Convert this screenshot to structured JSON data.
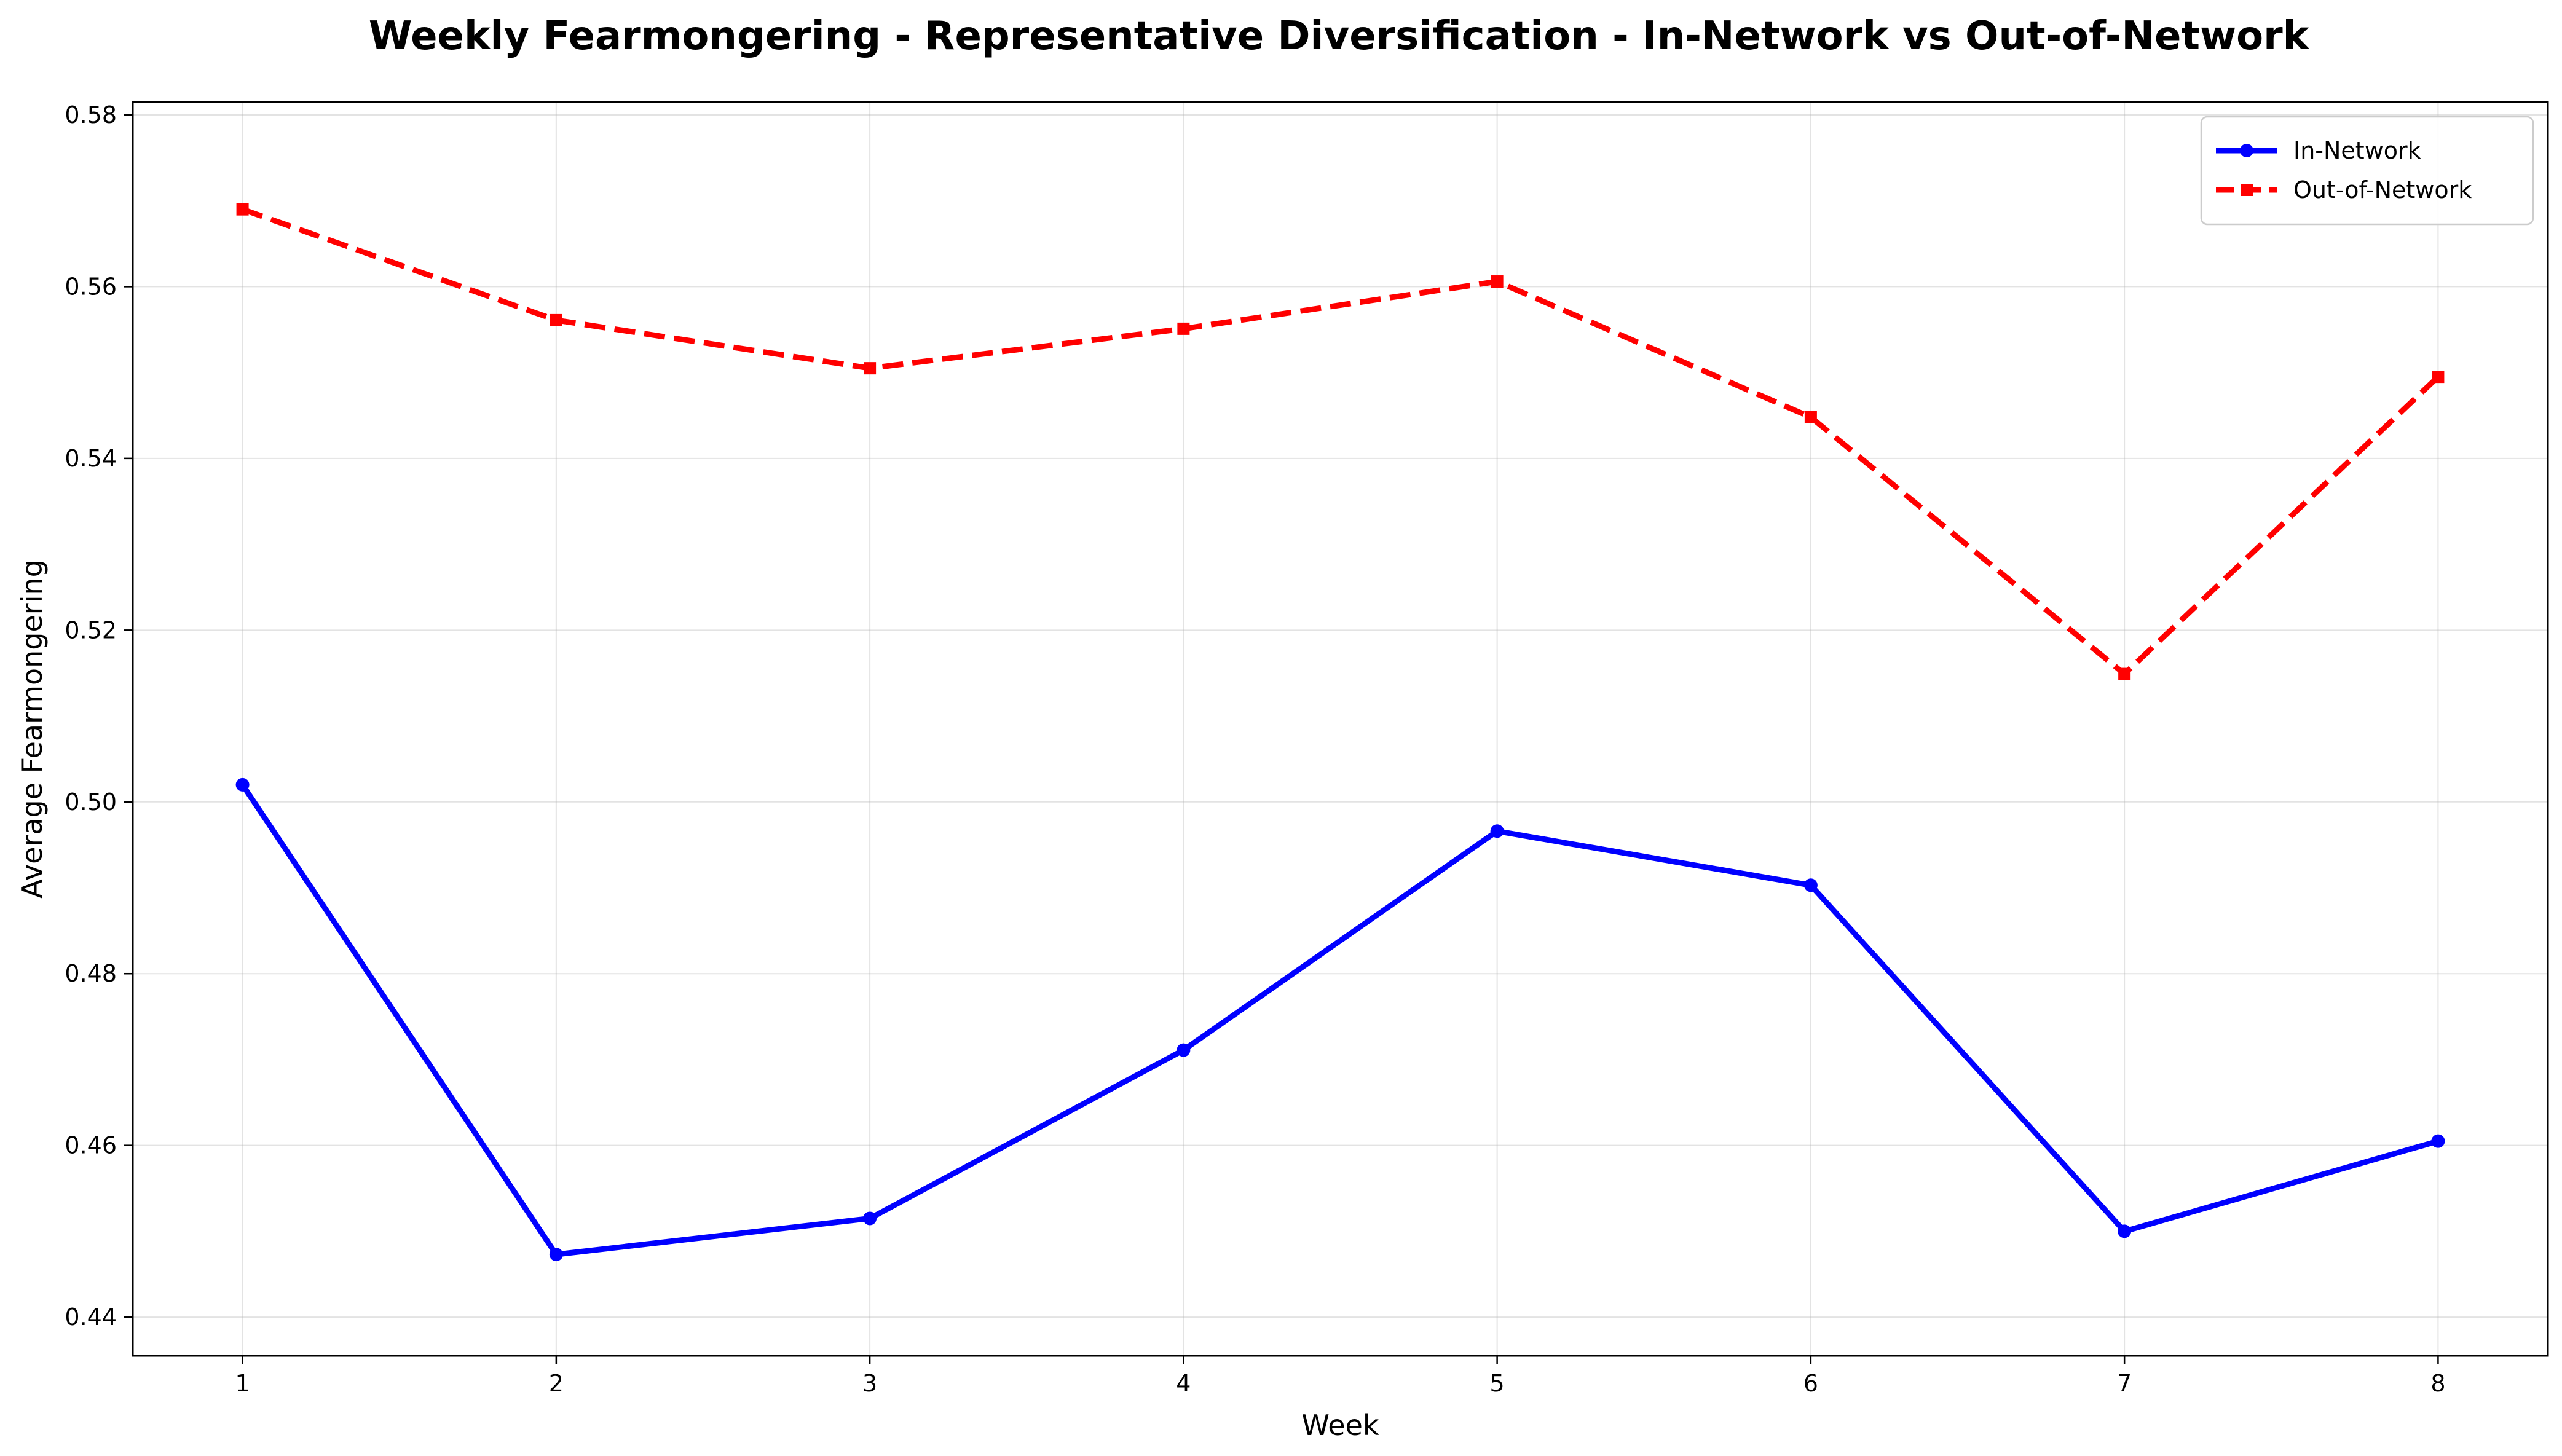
{
  "chart_data": {
    "type": "line",
    "title": "Weekly Fearmongering - Representative Diversification - In-Network vs Out-of-Network",
    "xlabel": "Week",
    "ylabel": "Average Fearmongering",
    "x": [
      1,
      2,
      3,
      4,
      5,
      6,
      7,
      8
    ],
    "xlim": [
      0.65,
      8.35
    ],
    "ylim": [
      0.4355,
      0.5815
    ],
    "yticks": [
      0.44,
      0.46,
      0.48,
      0.5,
      0.52,
      0.54,
      0.56,
      0.58
    ],
    "grid": true,
    "legend_position": "top-right",
    "series": [
      {
        "name": "In-Network",
        "color": "#0000ff",
        "line_style": "solid",
        "marker": "circle",
        "values": [
          0.502,
          0.4473,
          0.4515,
          0.4711,
          0.4966,
          0.4903,
          0.45,
          0.4605
        ]
      },
      {
        "name": "Out-of-Network",
        "color": "#ff0000",
        "line_style": "dashed",
        "marker": "square",
        "values": [
          0.569,
          0.5561,
          0.5505,
          0.5551,
          0.5606,
          0.5448,
          0.5149,
          0.5495
        ]
      }
    ]
  }
}
